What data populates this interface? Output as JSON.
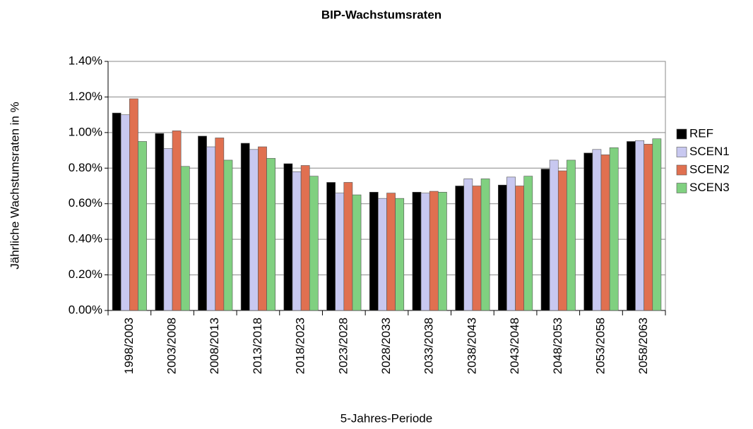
{
  "chart_data": {
    "type": "bar",
    "title": "BIP-Wachstumsraten",
    "x_label": "5-Jahres-Periode",
    "y_label": "Jährliche Wachstumsraten in %",
    "categories": [
      "1998/2003",
      "2003/2008",
      "2008/2013",
      "2013/2018",
      "2018/2023",
      "2023/2028",
      "2028/2033",
      "2033/2038",
      "2038/2043",
      "2043/2048",
      "2048/2053",
      "2053/2058",
      "2058/2063"
    ],
    "series": [
      {
        "name": "REF",
        "color": "#000000",
        "values": [
          1.11,
          0.995,
          0.98,
          0.94,
          0.825,
          0.72,
          0.665,
          0.665,
          0.7,
          0.705,
          0.795,
          0.885,
          0.95
        ]
      },
      {
        "name": "SCEN1",
        "color": "#c8c8f0",
        "values": [
          1.1,
          0.91,
          0.92,
          0.905,
          0.78,
          0.66,
          0.63,
          0.66,
          0.74,
          0.75,
          0.845,
          0.905,
          0.955
        ]
      },
      {
        "name": "SCEN2",
        "color": "#e07050",
        "values": [
          1.19,
          1.01,
          0.97,
          0.92,
          0.815,
          0.72,
          0.66,
          0.67,
          0.7,
          0.7,
          0.785,
          0.875,
          0.935
        ]
      },
      {
        "name": "SCEN3",
        "color": "#80d080",
        "values": [
          0.95,
          0.81,
          0.845,
          0.855,
          0.755,
          0.65,
          0.63,
          0.665,
          0.74,
          0.755,
          0.845,
          0.915,
          0.965
        ]
      }
    ],
    "ylim": [
      0,
      1.4
    ],
    "yticks": [
      {
        "value": 0,
        "label": "0.00%"
      },
      {
        "value": 0.2,
        "label": "0.20%"
      },
      {
        "value": 0.4,
        "label": "0.40%"
      },
      {
        "value": 0.6,
        "label": "0.60%"
      },
      {
        "value": 0.8,
        "label": "0.80%"
      },
      {
        "value": 1.0,
        "label": "1.00%"
      },
      {
        "value": 1.2,
        "label": "1.20%"
      },
      {
        "value": 1.4,
        "label": "1.40%"
      }
    ],
    "grid": true,
    "legend": "right"
  }
}
